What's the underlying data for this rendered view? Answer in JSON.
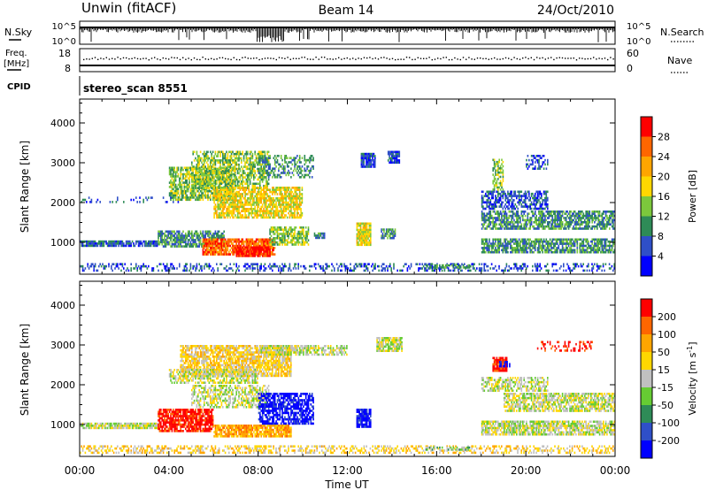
{
  "header": {
    "radar_title": "Unwin (fitACF)",
    "beam_label": "Beam 14",
    "date_label": "24/Oct/2010"
  },
  "strip": {
    "nsky_label": "N.Sky",
    "nsky_ticks": [
      "10^5",
      "10^0"
    ],
    "nsearch_label": "N.Search",
    "nsearch_ticks": [
      "10^5",
      "10^0"
    ],
    "freq_label_1": "Freq.",
    "freq_label_2": "[MHz]",
    "freq_ticks": [
      "18",
      "8"
    ],
    "nave_label": "Nave",
    "nave_ticks": [
      "60",
      "0"
    ],
    "cpid_label": "CPID",
    "cpid_text": "stereo_scan 8551"
  },
  "chart_data": [
    {
      "type": "heatmap",
      "panel": "power",
      "xlabel": "Time UT",
      "ylabel": "Slant Range [km]",
      "x_ticks": [
        "00:00",
        "04:00",
        "08:00",
        "12:00",
        "16:00",
        "20:00",
        "00:00"
      ],
      "y_ticks": [
        "1000",
        "2000",
        "3000",
        "4000"
      ],
      "xlim_hours": [
        0,
        24
      ],
      "ylim_km": [
        200,
        4600
      ],
      "colorbar": {
        "label": "Power [dB]",
        "ticks": [
          "4",
          "8",
          "12",
          "16",
          "20",
          "24",
          "28"
        ],
        "colors": [
          "#0000ff",
          "#2f4fc8",
          "#2e8b57",
          "#7cc83c",
          "#ffd700",
          "#ffa500",
          "#ff6600",
          "#ff0000"
        ]
      },
      "regions": [
        {
          "t0": 0.0,
          "t1": 24.0,
          "r0": 250,
          "r1": 480,
          "level": 1,
          "density": 0.35
        },
        {
          "t0": 0.0,
          "t1": 3.5,
          "r0": 850,
          "r1": 1050,
          "level": 1,
          "density": 0.85
        },
        {
          "t0": 0.0,
          "t1": 4.5,
          "r0": 1950,
          "r1": 2150,
          "level": 1,
          "density": 0.15
        },
        {
          "t0": 3.5,
          "t1": 6.5,
          "r0": 850,
          "r1": 1300,
          "level": 2,
          "density": 0.75
        },
        {
          "t0": 4.0,
          "t1": 7.0,
          "r0": 2000,
          "r1": 2900,
          "level": 3,
          "density": 0.7
        },
        {
          "t0": 5.0,
          "t1": 8.5,
          "r0": 2300,
          "r1": 3300,
          "level": 3,
          "density": 0.6
        },
        {
          "t0": 6.0,
          "t1": 10.0,
          "r0": 1600,
          "r1": 2400,
          "level": 4,
          "density": 0.75
        },
        {
          "t0": 5.5,
          "t1": 8.8,
          "r0": 650,
          "r1": 1100,
          "level": 6,
          "density": 0.85
        },
        {
          "t0": 7.0,
          "t1": 8.6,
          "r0": 600,
          "r1": 900,
          "level": 7,
          "density": 0.95
        },
        {
          "t0": 8.5,
          "t1": 10.3,
          "r0": 900,
          "r1": 1400,
          "level": 3,
          "density": 0.7
        },
        {
          "t0": 8.0,
          "t1": 10.5,
          "r0": 2600,
          "r1": 3200,
          "level": 2,
          "density": 0.4
        },
        {
          "t0": 10.5,
          "t1": 11.0,
          "r0": 1050,
          "r1": 1250,
          "level": 2,
          "density": 0.85
        },
        {
          "t0": 12.4,
          "t1": 13.1,
          "r0": 900,
          "r1": 1500,
          "level": 4,
          "density": 0.9
        },
        {
          "t0": 13.5,
          "t1": 14.2,
          "r0": 1050,
          "r1": 1350,
          "level": 2,
          "density": 0.85
        },
        {
          "t0": 12.6,
          "t1": 13.3,
          "r0": 2850,
          "r1": 3250,
          "level": 1,
          "density": 0.9
        },
        {
          "t0": 13.8,
          "t1": 14.4,
          "r0": 2950,
          "r1": 3300,
          "level": 1,
          "density": 0.85
        },
        {
          "t0": 15.5,
          "t1": 17.5,
          "r0": 300,
          "r1": 450,
          "level": 2,
          "density": 0.6
        },
        {
          "t0": 18.0,
          "t1": 24.0,
          "r0": 700,
          "r1": 1100,
          "level": 2,
          "density": 0.75
        },
        {
          "t0": 18.0,
          "t1": 24.0,
          "r0": 1300,
          "r1": 1800,
          "level": 2,
          "density": 0.7
        },
        {
          "t0": 18.0,
          "t1": 21.0,
          "r0": 1800,
          "r1": 2300,
          "level": 1,
          "density": 0.6
        },
        {
          "t0": 18.5,
          "t1": 19.0,
          "r0": 2300,
          "r1": 3100,
          "level": 3,
          "density": 0.55
        },
        {
          "t0": 20.0,
          "t1": 21.0,
          "r0": 2800,
          "r1": 3200,
          "level": 1,
          "density": 0.4
        }
      ]
    },
    {
      "type": "heatmap",
      "panel": "velocity",
      "xlabel": "Time UT",
      "ylabel": "Slant Range [km]",
      "x_ticks": [
        "00:00",
        "04:00",
        "08:00",
        "12:00",
        "16:00",
        "20:00",
        "00:00"
      ],
      "y_ticks": [
        "1000",
        "2000",
        "3000",
        "4000"
      ],
      "xlim_hours": [
        0,
        24
      ],
      "ylim_km": [
        200,
        4600
      ],
      "colorbar": {
        "label": "Velocity [m s",
        "label_exp": "-1",
        "label_end": "]",
        "ticks": [
          "200",
          "100",
          "50",
          "15",
          "-15",
          "-50",
          "-100",
          "-200"
        ],
        "colors": [
          "#0000ff",
          "#2f4fc8",
          "#2e8b57",
          "#66cc33",
          "#c0c0c0",
          "#ffd700",
          "#ffa500",
          "#ff6600",
          "#ff0000"
        ]
      },
      "regions": [
        {
          "t0": 0.0,
          "t1": 24.0,
          "r0": 250,
          "r1": 480,
          "level": 5,
          "density": 0.4
        },
        {
          "t0": 0.0,
          "t1": 3.5,
          "r0": 850,
          "r1": 1050,
          "level": 4,
          "density": 0.85
        },
        {
          "t0": 3.5,
          "t1": 6.0,
          "r0": 800,
          "r1": 1400,
          "level": 8,
          "density": 0.8
        },
        {
          "t0": 6.0,
          "t1": 9.5,
          "r0": 650,
          "r1": 1000,
          "level": 6,
          "density": 0.85
        },
        {
          "t0": 4.5,
          "t1": 9.5,
          "r0": 2200,
          "r1": 3000,
          "level": 5,
          "density": 0.75
        },
        {
          "t0": 4.0,
          "t1": 8.0,
          "r0": 2000,
          "r1": 2400,
          "level": 4,
          "density": 0.6
        },
        {
          "t0": 5.0,
          "t1": 8.5,
          "r0": 1400,
          "r1": 2000,
          "level": 4,
          "density": 0.55
        },
        {
          "t0": 8.0,
          "t1": 10.5,
          "r0": 1000,
          "r1": 1800,
          "level": 0,
          "density": 0.7
        },
        {
          "t0": 8.0,
          "t1": 10.5,
          "r0": 2700,
          "r1": 3000,
          "level": 4,
          "density": 0.7
        },
        {
          "t0": 10.5,
          "t1": 12.0,
          "r0": 2700,
          "r1": 3000,
          "level": 4,
          "density": 0.6
        },
        {
          "t0": 12.4,
          "t1": 13.1,
          "r0": 900,
          "r1": 1400,
          "level": 0,
          "density": 0.85
        },
        {
          "t0": 13.3,
          "t1": 14.5,
          "r0": 2800,
          "r1": 3200,
          "level": 4,
          "density": 0.8
        },
        {
          "t0": 15.5,
          "t1": 17.5,
          "r0": 300,
          "r1": 450,
          "level": 3,
          "density": 0.6
        },
        {
          "t0": 18.0,
          "t1": 24.0,
          "r0": 700,
          "r1": 1100,
          "level": 4,
          "density": 0.75
        },
        {
          "t0": 19.0,
          "t1": 24.0,
          "r0": 1300,
          "r1": 1800,
          "level": 4,
          "density": 0.7
        },
        {
          "t0": 18.0,
          "t1": 21.0,
          "r0": 1800,
          "r1": 2200,
          "level": 4,
          "density": 0.6
        },
        {
          "t0": 18.5,
          "t1": 19.2,
          "r0": 2300,
          "r1": 2700,
          "level": 8,
          "density": 0.8
        },
        {
          "t0": 18.8,
          "t1": 19.3,
          "r0": 2400,
          "r1": 2600,
          "level": 0,
          "density": 0.6
        },
        {
          "t0": 20.5,
          "t1": 23.0,
          "r0": 2800,
          "r1": 3100,
          "level": 8,
          "density": 0.3
        }
      ]
    }
  ]
}
